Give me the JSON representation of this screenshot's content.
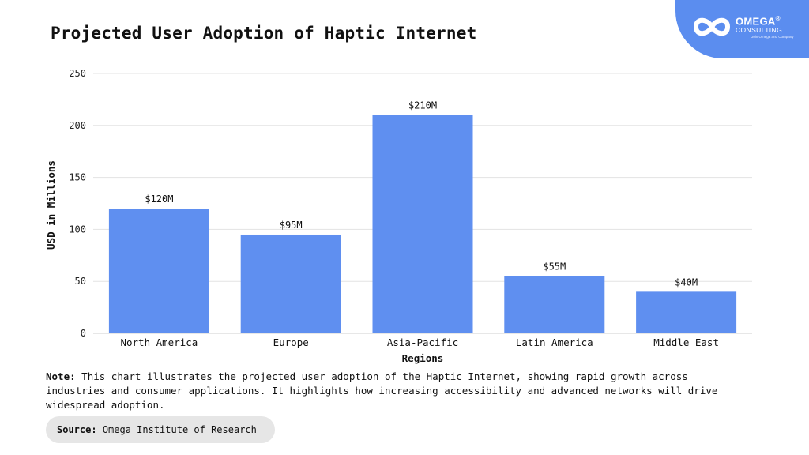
{
  "title": "Projected User Adoption of Haptic Internet",
  "logo": {
    "name": "OMEGA",
    "registered": "®",
    "sub": "CONSULTING",
    "tagline": "Join Omega and Company"
  },
  "note": {
    "label": "Note:",
    "text": "This chart illustrates the projected user adoption of the Haptic Internet, showing rapid growth across industries and consumer applications. It highlights how increasing accessibility and advanced networks will drive widespread adoption."
  },
  "source": {
    "label": "Source:",
    "text": "Omega Institute of Research"
  },
  "colors": {
    "bar": "#5f8ff0",
    "grid": "#e3e3e3",
    "accent": "#5b8def"
  },
  "chart_data": {
    "type": "bar",
    "categories": [
      "North America",
      "Europe",
      "Asia-Pacific",
      "Latin America",
      "Middle East"
    ],
    "values": [
      120,
      95,
      210,
      55,
      40
    ],
    "data_labels": [
      "$120M",
      "$95M",
      "$210M",
      "$55M",
      "$40M"
    ],
    "xlabel": "Regions",
    "ylabel": "USD in Millions",
    "ylim": [
      0,
      250
    ],
    "yticks": [
      0,
      50,
      100,
      150,
      200,
      250
    ],
    "grid": true
  }
}
